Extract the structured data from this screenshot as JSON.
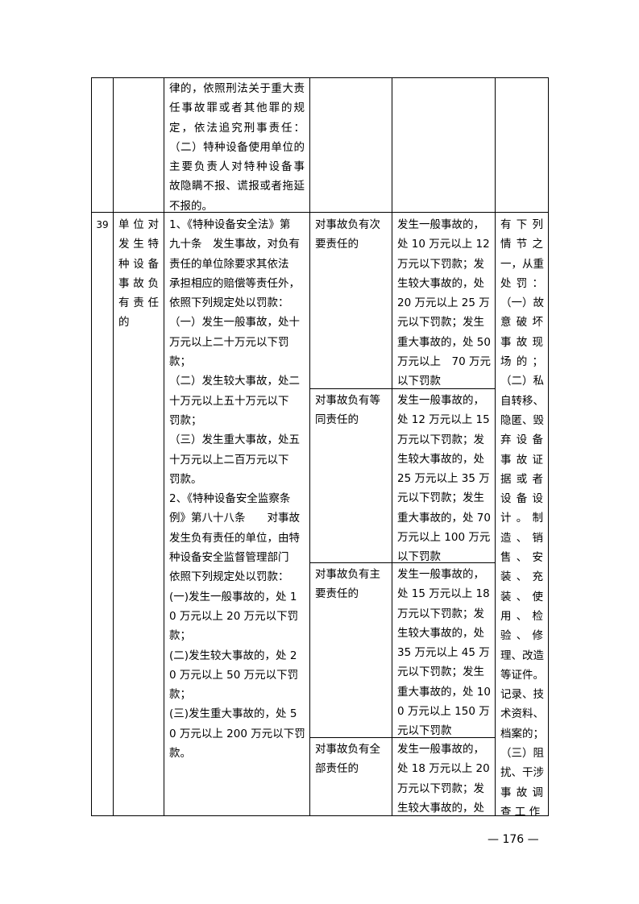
{
  "continued_row": {
    "basis_lines": [
      "律的，依照刑法关于重大责",
      "任事故罪或者其他罪的规",
      "定，依法追究刑事责任：",
      "（二）特种设备使用单位的",
      "主要负责人对特种设备事",
      "故隐瞒不报、谎报或者拖延",
      "不报的。"
    ]
  },
  "row39": {
    "number": "39",
    "item_lines": [
      "单 位 对",
      "发 生 特",
      "种 设 备",
      "事 故 负",
      "有 责 任",
      "的"
    ],
    "basis_lines": [
      "1、《特种设备安全法》第",
      "九十条　发生事故，对负有",
      "责任的单位除要求其依法",
      "承担相应的赔偿等责任外，",
      "依照下列规定处以罚款：",
      "（一）发生一般事故，处十",
      "万元以上二十万元以下罚",
      "款；",
      "（二）发生较大事故，处二",
      "十万元以上五十万元以下",
      "罚款；",
      "（三）发生重大事故，处五",
      "十万元以上二百万元以下",
      "罚款。",
      "2、《特种设备安全监察条",
      "例》第八十八条　　对事故",
      "发生负有责任的单位，由特",
      "种设备安全监督管理部门",
      "依照下列规定处以罚款：",
      "(一)发生一般事故的，处 1",
      "0 万元以上 20 万元以下罚",
      "款；",
      "(二)发生较大事故的，处 2",
      "0 万元以上 50 万元以下罚",
      "款；",
      "(三)发生重大事故的，处 5",
      "0 万元以上 200 万元以下罚",
      "款。"
    ],
    "circumstances": [
      {
        "lines": [
          "对事故负有次",
          "要责任的"
        ],
        "penalty_lines": [
          "发生一般事故的，",
          "处 10 万元以上 12",
          "万元以下罚款；发",
          "生较大事故的，处",
          "20 万元以上 25 万",
          "元以下罚款；发生",
          "重大事故的，处 50",
          "万元以上　70 万元",
          "以下罚款"
        ]
      },
      {
        "lines": [
          "对事故负有等",
          "同责任的"
        ],
        "penalty_lines": [
          "发生一般事故的，",
          "处 12 万元以上 15",
          "万元以下罚款；发",
          "生较大事故的，处",
          "25 万元以上 35 万",
          "元以下罚款；发生",
          "重大事故的，处 70",
          "万元以上 100 万元",
          "以下罚款"
        ]
      },
      {
        "lines": [
          "对事故负有主",
          "要责任的"
        ],
        "penalty_lines": [
          "发生一般事故的，",
          "处 15 万元以上 18",
          "万元以下罚款；发",
          "生较大事故的，处",
          "35 万元以上 45 万",
          "元以下罚款；发生",
          "重大事故的，处 10",
          "0 万元以上 150 万",
          "元以下罚款"
        ]
      },
      {
        "lines": [
          "对事故负有全",
          "部责任的"
        ],
        "penalty_lines": [
          "发生一般事故的，",
          "处 18 万元以上 20",
          "万元以下罚款；发",
          "生较大事故的，处"
        ]
      }
    ],
    "remark_lines": [
      "有 下 列",
      "情 节 之",
      "一，从重",
      "处 罚 ：",
      "（一）故",
      "意 破 坏",
      "事 故 现",
      "场 的 ；",
      "（二）私",
      "自转移、",
      "隐匿、毁",
      "弃 设 备",
      "事 故 证",
      "据 或 者",
      "设 备 设",
      "计 。 制",
      "造 、 销",
      "售 、 安",
      "装 、 充",
      "装 、 使",
      "用 、 检",
      "验 、 修",
      "理、改造",
      "等证件。",
      "记录、技",
      "术资料、",
      "档案的；",
      "（三）阻",
      "扰、干涉",
      "事 故 调",
      "查 工 作"
    ]
  },
  "footer": {
    "page_number": "— 176 —"
  }
}
